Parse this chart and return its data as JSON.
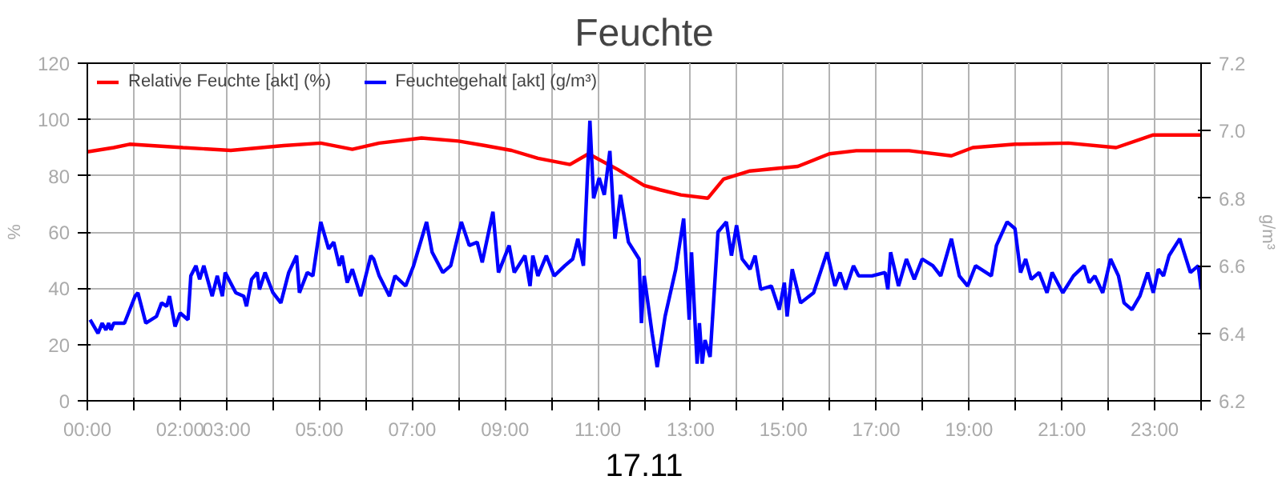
{
  "chart_data": {
    "type": "line",
    "title": "Feuchte",
    "xlabel": "17.11",
    "ylabel": "%",
    "y2label": "g/m³",
    "xlim": [
      0,
      24
    ],
    "ylim": [
      0,
      120
    ],
    "yticks": [
      0,
      20,
      40,
      60,
      80,
      100,
      120
    ],
    "y2lim": [
      6.2,
      7.2
    ],
    "y2ticks": [
      {
        "value": 6.2,
        "label": "6.2"
      },
      {
        "value": 6.4,
        "label": "6.4"
      },
      {
        "value": 6.6,
        "label": "6.6"
      },
      {
        "value": 6.8,
        "label": "6.8"
      },
      {
        "value": 7.0,
        "label": "7.0"
      },
      {
        "value": 7.2,
        "label": "7.2"
      }
    ],
    "xticks": [
      {
        "value": 0,
        "label": "00:00"
      },
      {
        "value": 1,
        "label": null
      },
      {
        "value": 2,
        "label": "02:00"
      },
      {
        "value": 3,
        "label": "03:00"
      },
      {
        "value": 4,
        "label": null
      },
      {
        "value": 5,
        "label": "05:00"
      },
      {
        "value": 6,
        "label": null
      },
      {
        "value": 7,
        "label": "07:00"
      },
      {
        "value": 8,
        "label": null
      },
      {
        "value": 9,
        "label": "09:00"
      },
      {
        "value": 10,
        "label": null
      },
      {
        "value": 11,
        "label": "11:00"
      },
      {
        "value": 12,
        "label": null
      },
      {
        "value": 13,
        "label": "13:00"
      },
      {
        "value": 14,
        "label": null
      },
      {
        "value": 15,
        "label": "15:00"
      },
      {
        "value": 16,
        "label": null
      },
      {
        "value": 17,
        "label": "17:00"
      },
      {
        "value": 18,
        "label": null
      },
      {
        "value": 19,
        "label": "19:00"
      },
      {
        "value": 20,
        "label": null
      },
      {
        "value": 21,
        "label": "21:00"
      },
      {
        "value": 22,
        "label": null
      },
      {
        "value": 23,
        "label": "23:00"
      },
      {
        "value": 24,
        "label": null
      }
    ],
    "grid": true,
    "legend": "top left",
    "line_style": "solid",
    "marker": "none",
    "series": [
      {
        "name": "Relative Feuchte [akt] (%)",
        "color": "#ff0000",
        "x": [
          0,
          0.57,
          0.91,
          2.06,
          3.09,
          4.23,
          5.03,
          5.71,
          6.29,
          7.2,
          8.0,
          8.57,
          9.14,
          9.71,
          10.4,
          10.8,
          11.43,
          12.0,
          12.34,
          12.79,
          13.37,
          13.71,
          14.28,
          15.31,
          15.99,
          16.57,
          17.71,
          18.62,
          19.08,
          19.99,
          21.14,
          22.17,
          22.97,
          23.99
        ],
        "values": [
          88.5,
          90,
          91.2,
          90,
          89,
          90.7,
          91.6,
          89.4,
          91.6,
          93.4,
          92.3,
          90.7,
          89,
          86.2,
          84,
          87.8,
          82.2,
          76.5,
          75,
          73.2,
          72,
          78.8,
          81.7,
          83.3,
          87.8,
          88.9,
          88.9,
          87.1,
          90,
          91.2,
          91.6,
          90,
          94.5,
          94.5
        ]
      },
      {
        "name": "Feuchtegehalt [akt] (g/m³)",
        "color": "#0000ff",
        "axis": "y2",
        "x": [
          0.06,
          0.23,
          0.32,
          0.4,
          0.46,
          0.51,
          0.57,
          0.69,
          0.8,
          1.03,
          1.09,
          1.26,
          1.49,
          1.6,
          1.71,
          1.77,
          1.89,
          2.0,
          2.17,
          2.23,
          2.34,
          2.42,
          2.51,
          2.69,
          2.8,
          2.91,
          2.97,
          3.2,
          3.37,
          3.43,
          3.54,
          3.66,
          3.71,
          3.83,
          4.0,
          4.17,
          4.34,
          4.51,
          4.57,
          4.74,
          4.86,
          5.03,
          5.2,
          5.31,
          5.43,
          5.49,
          5.6,
          5.71,
          5.89,
          6.11,
          6.17,
          6.29,
          6.51,
          6.63,
          6.86,
          7.03,
          7.31,
          7.43,
          7.66,
          7.83,
          8.06,
          8.23,
          8.4,
          8.51,
          8.74,
          8.86,
          9.09,
          9.2,
          9.43,
          9.54,
          9.6,
          9.71,
          9.89,
          10.06,
          10.29,
          10.46,
          10.57,
          10.69,
          10.83,
          10.91,
          11.03,
          11.14,
          11.26,
          11.37,
          11.49,
          11.66,
          11.89,
          11.94,
          12.0,
          12.17,
          12.28,
          12.45,
          12.68,
          12.85,
          12.97,
          13.02,
          13.14,
          13.19,
          13.25,
          13.31,
          13.42,
          13.59,
          13.77,
          13.88,
          13.99,
          14.11,
          14.28,
          14.39,
          14.51,
          14.74,
          14.91,
          15.02,
          15.08,
          15.19,
          15.37,
          15.65,
          15.94,
          16.11,
          16.22,
          16.34,
          16.51,
          16.62,
          16.91,
          17.19,
          17.25,
          17.31,
          17.48,
          17.65,
          17.82,
          17.99,
          18.22,
          18.39,
          18.62,
          18.79,
          18.97,
          19.14,
          19.48,
          19.59,
          19.82,
          19.99,
          20.11,
          20.22,
          20.34,
          20.51,
          20.68,
          20.79,
          21.02,
          21.25,
          21.48,
          21.59,
          21.71,
          21.88,
          22.05,
          22.22,
          22.34,
          22.51,
          22.68,
          22.85,
          22.97,
          23.08,
          23.19,
          23.31,
          23.54,
          23.77,
          23.94,
          24.0
        ],
        "values": [
          6.44,
          6.4,
          6.43,
          6.41,
          6.43,
          6.41,
          6.43,
          6.43,
          6.43,
          6.51,
          6.52,
          6.43,
          6.45,
          6.49,
          6.48,
          6.51,
          6.42,
          6.46,
          6.44,
          6.57,
          6.6,
          6.56,
          6.6,
          6.51,
          6.57,
          6.51,
          6.58,
          6.52,
          6.51,
          6.48,
          6.56,
          6.58,
          6.53,
          6.58,
          6.52,
          6.49,
          6.58,
          6.63,
          6.52,
          6.58,
          6.57,
          6.73,
          6.65,
          6.67,
          6.6,
          6.63,
          6.55,
          6.59,
          6.51,
          6.63,
          6.62,
          6.57,
          6.51,
          6.57,
          6.54,
          6.6,
          6.73,
          6.64,
          6.58,
          6.6,
          6.73,
          6.66,
          6.67,
          6.61,
          6.76,
          6.58,
          6.66,
          6.58,
          6.63,
          6.54,
          6.63,
          6.57,
          6.63,
          6.57,
          6.6,
          6.62,
          6.68,
          6.6,
          7.03,
          6.8,
          6.86,
          6.81,
          6.94,
          6.68,
          6.81,
          6.67,
          6.62,
          6.43,
          6.57,
          6.4,
          6.3,
          6.45,
          6.59,
          6.74,
          6.44,
          6.64,
          6.31,
          6.43,
          6.31,
          6.38,
          6.33,
          6.7,
          6.73,
          6.63,
          6.72,
          6.62,
          6.59,
          6.63,
          6.53,
          6.54,
          6.47,
          6.55,
          6.45,
          6.59,
          6.49,
          6.52,
          6.64,
          6.54,
          6.58,
          6.53,
          6.6,
          6.57,
          6.57,
          6.58,
          6.53,
          6.64,
          6.54,
          6.62,
          6.56,
          6.62,
          6.6,
          6.57,
          6.68,
          6.57,
          6.54,
          6.6,
          6.57,
          6.66,
          6.73,
          6.71,
          6.58,
          6.62,
          6.56,
          6.58,
          6.52,
          6.58,
          6.52,
          6.57,
          6.6,
          6.55,
          6.57,
          6.52,
          6.62,
          6.57,
          6.49,
          6.47,
          6.51,
          6.58,
          6.52,
          6.59,
          6.57,
          6.63,
          6.68,
          6.58,
          6.6,
          6.53
        ]
      }
    ]
  }
}
